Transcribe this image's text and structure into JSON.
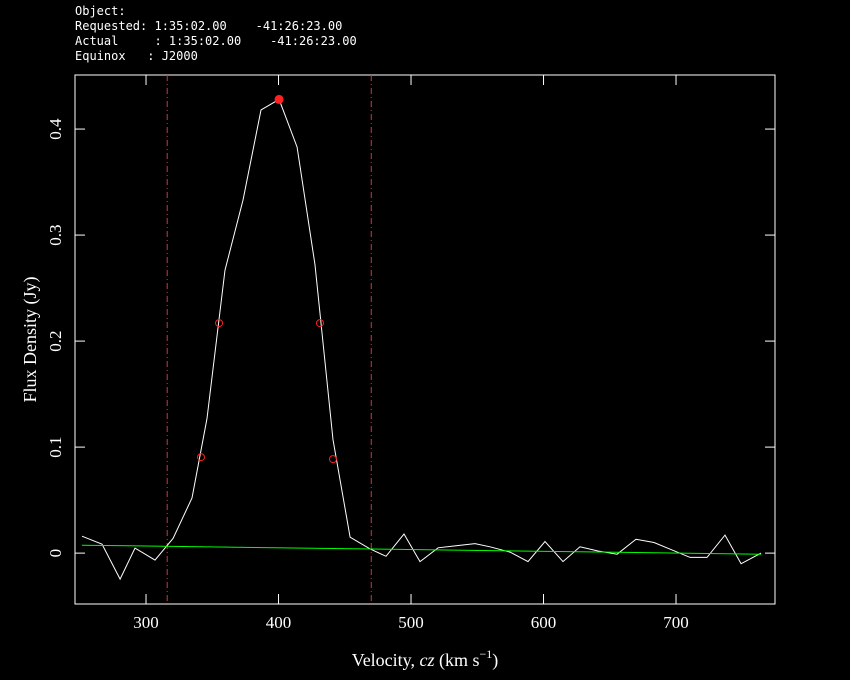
{
  "chart_data": {
    "type": "line",
    "header": [
      "Object:",
      "Requested: 1:35:02.00    -41:26:23.00",
      "Actual     : 1:35:02.00    -41:26:23.00",
      "Equinox   : J2000"
    ],
    "ylabel": "Flux Density (Jy)",
    "xlabel": {
      "text": "Velocity, ",
      "italic": "cz",
      "rest": " (km s",
      "superscript": "−1",
      "end": ")"
    },
    "xlim": [
      246.4,
      774.7
    ],
    "ylim": [
      -0.048,
      0.451
    ],
    "xticks": [
      300,
      400,
      500,
      600,
      700
    ],
    "yticks": [
      0,
      0.1,
      0.2,
      0.3,
      0.4
    ],
    "series": [
      {
        "color": "#ffffff",
        "x": [
          251.7,
          266.8,
          280.4,
          291.7,
          306.8,
          320.4,
          334.7,
          346.0,
          359.6,
          373.2,
          386.8,
          400.4,
          414.0,
          427.5,
          441.1,
          454.0,
          469.1,
          481.1,
          494.7,
          506.8,
          520.4,
          534.0,
          548.3,
          559.6,
          574.7,
          588.3,
          601.1,
          614.7,
          627.5,
          641.1,
          655.5,
          669.8,
          683.4,
          697.0,
          710.6,
          723.4,
          737.0,
          749.1,
          764.2
        ],
        "values": [
          0.016,
          0.0085,
          -0.0245,
          0.0047,
          -0.0066,
          0.014,
          0.052,
          0.127,
          0.267,
          0.333,
          0.418,
          0.428,
          0.383,
          0.272,
          0.107,
          0.015,
          0.004,
          -0.003,
          0.018,
          -0.008,
          0.005,
          0.007,
          0.009,
          0.006,
          0.001,
          -0.008,
          0.011,
          -0.008,
          0.006,
          0.002,
          -0.001,
          0.013,
          0.01,
          0.003,
          -0.004,
          -0.004,
          0.017,
          -0.01,
          0.0
        ]
      },
      {
        "color": "#00ff00",
        "x": [
          251.7,
          764.2
        ],
        "values": [
          0.0075,
          -0.001
        ]
      }
    ],
    "vlines": {
      "color": "#e03030",
      "values": [
        316,
        470
      ]
    },
    "peak": {
      "color": "#ff2020",
      "x": 400.4,
      "value": 0.428
    },
    "width_points": {
      "color": "#ff2020",
      "x": [
        341.5,
        355.1,
        431.3,
        441.1
      ],
      "values": [
        0.0906,
        0.217,
        0.217,
        0.0887
      ]
    }
  }
}
